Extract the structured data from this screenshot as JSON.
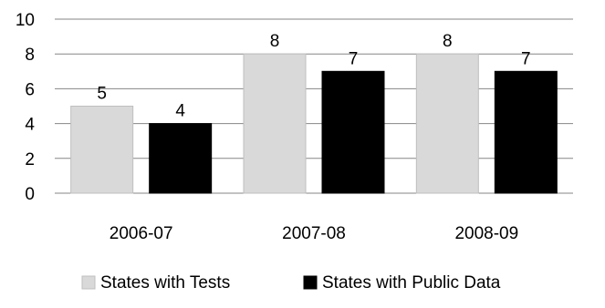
{
  "chart_data": {
    "type": "bar",
    "categories": [
      "2006-07",
      "2007-08",
      "2008-09"
    ],
    "series": [
      {
        "name": "States with Tests",
        "values": [
          5,
          8,
          8
        ],
        "color": "#d9d9d9",
        "stroke": "#bfbfbf"
      },
      {
        "name": "States with Public Data",
        "values": [
          4,
          7,
          7
        ],
        "color": "#000000",
        "stroke": "#000000"
      }
    ],
    "ylim": [
      0,
      10
    ],
    "yticks": [
      "0",
      "2",
      "4",
      "6",
      "8",
      "10"
    ],
    "grid": true,
    "legend": "bottom",
    "data_labels": true
  }
}
